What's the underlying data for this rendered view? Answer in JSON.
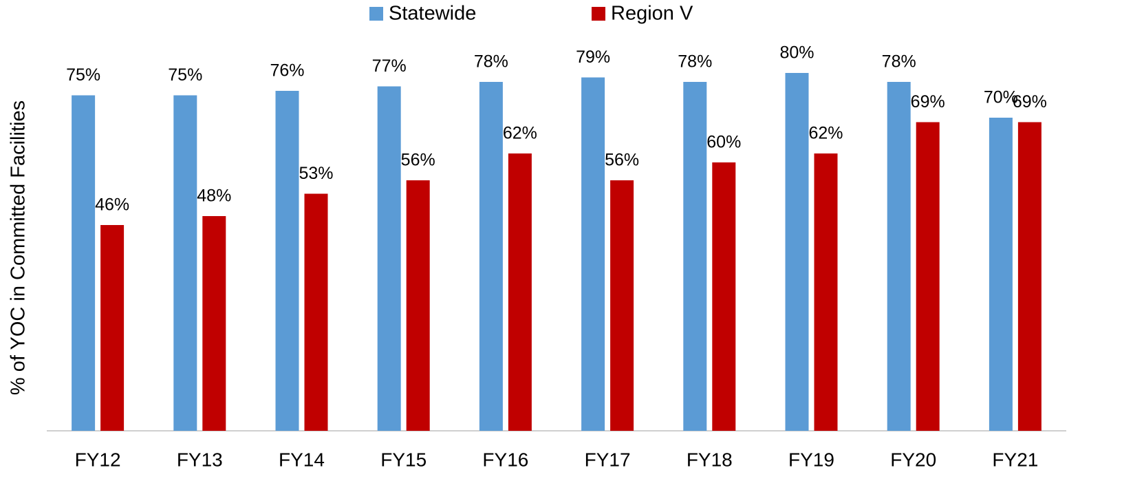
{
  "chart_data": {
    "type": "bar",
    "y_label": "% of YOC in Committed Facilities",
    "categories": [
      "FY12",
      "FY13",
      "FY14",
      "FY15",
      "FY16",
      "FY17",
      "FY18",
      "FY19",
      "FY20",
      "FY21"
    ],
    "series": [
      {
        "name": "Statewide",
        "color": "#5b9bd5",
        "values": [
          75,
          75,
          76,
          77,
          78,
          79,
          78,
          80,
          78,
          70
        ],
        "value_labels": [
          "75%",
          "75%",
          "76%",
          "77%",
          "78%",
          "79%",
          "78%",
          "80%",
          "78%",
          "70%"
        ]
      },
      {
        "name": "Region V",
        "color": "#c00000",
        "values": [
          46,
          48,
          53,
          56,
          62,
          56,
          60,
          62,
          69,
          69
        ],
        "value_labels": [
          "46%",
          "48%",
          "53%",
          "56%",
          "62%",
          "56%",
          "60%",
          "62%",
          "69%",
          "69%"
        ]
      }
    ],
    "ylim": [
      0,
      90
    ],
    "legend": "top"
  }
}
